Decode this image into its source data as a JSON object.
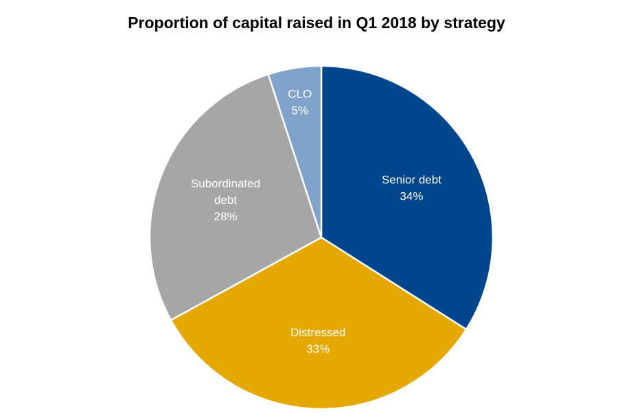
{
  "chart_data": {
    "type": "pie",
    "title": "Proportion of capital raised in Q1 2018 by strategy",
    "slices": [
      {
        "label": "Senior debt",
        "lines": [
          "Senior debt"
        ],
        "value": 34,
        "value_label": "34%",
        "color": "#00468C"
      },
      {
        "label": "Distressed",
        "lines": [
          "Distressed"
        ],
        "value": 33,
        "value_label": "33%",
        "color": "#E5A800"
      },
      {
        "label": "Subordinated debt",
        "lines": [
          "Subordinated",
          "debt"
        ],
        "value": 28,
        "value_label": "28%",
        "color": "#A6A6A6"
      },
      {
        "label": "CLO",
        "lines": [
          "CLO"
        ],
        "value": 5,
        "value_label": "5%",
        "color": "#7FA3CB"
      }
    ],
    "start_angle": "12 o'clock",
    "direction": "clockwise",
    "legend": "none"
  }
}
